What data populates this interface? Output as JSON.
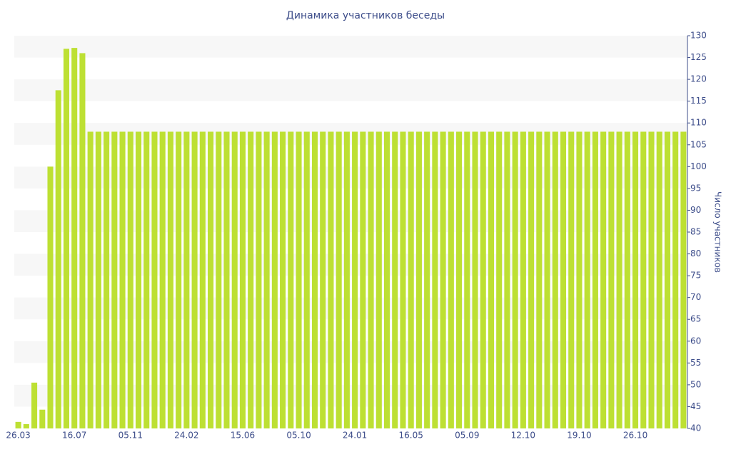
{
  "chart_data": {
    "type": "bar",
    "title": "Динамика участников беседы",
    "y_label": "Число участников",
    "categories": [
      "26.03",
      null,
      null,
      null,
      null,
      null,
      null,
      "16.07",
      null,
      null,
      null,
      null,
      null,
      null,
      "05.11",
      null,
      null,
      null,
      null,
      null,
      null,
      "24.02",
      null,
      null,
      null,
      null,
      null,
      null,
      "15.06",
      null,
      null,
      null,
      null,
      null,
      null,
      "05.10",
      null,
      null,
      null,
      null,
      null,
      null,
      "24.01",
      null,
      null,
      null,
      null,
      null,
      null,
      "16.05",
      null,
      null,
      null,
      null,
      null,
      null,
      "05.09",
      null,
      null,
      null,
      null,
      null,
      null,
      "12.10",
      null,
      null,
      null,
      null,
      null,
      null,
      "19.10",
      null,
      null,
      null,
      null,
      null,
      null,
      "26.10",
      null,
      null,
      null,
      null,
      null,
      null
    ],
    "values": [
      41.5,
      41,
      50.5,
      44.3,
      100,
      117.5,
      127,
      127.2,
      126,
      108,
      108,
      108,
      108,
      108,
      108,
      108,
      108,
      108,
      108,
      108,
      108,
      108,
      108,
      108,
      108,
      108,
      108,
      108,
      108,
      108,
      108,
      108,
      108,
      108,
      108,
      108,
      108,
      108,
      108,
      108,
      108,
      108,
      108,
      108,
      108,
      108,
      108,
      108,
      108,
      108,
      108,
      108,
      108,
      108,
      108,
      108,
      108,
      108,
      108,
      108,
      108,
      108,
      108,
      108,
      108,
      108,
      108,
      108,
      108,
      108,
      108,
      108,
      108,
      108,
      108,
      108,
      108,
      108,
      108,
      108,
      108,
      108,
      108,
      108
    ],
    "color": "#bde033",
    "ylim": [
      40,
      130
    ],
    "yticks": [
      40,
      45,
      50,
      55,
      60,
      65,
      70,
      75,
      80,
      85,
      90,
      95,
      100,
      105,
      110,
      115,
      120,
      125,
      130
    ],
    "y_axis_side": "right",
    "grid": "bands"
  }
}
